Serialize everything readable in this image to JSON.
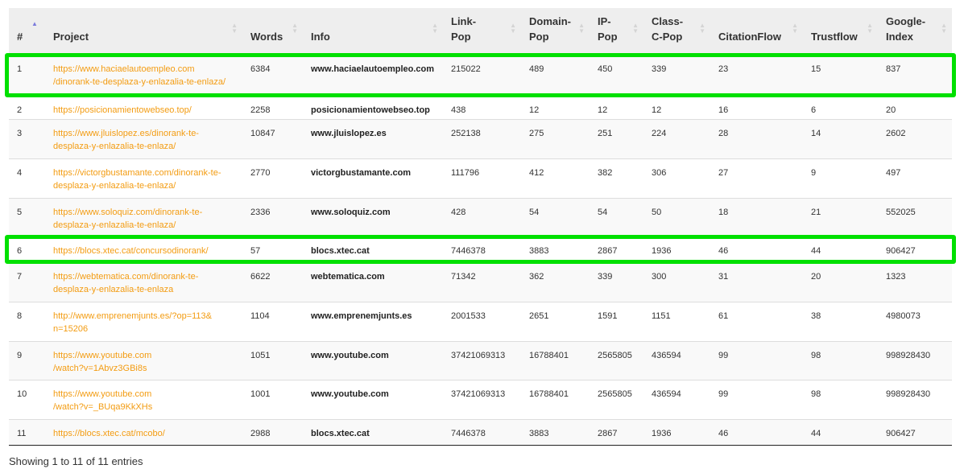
{
  "columns": [
    "#",
    "Project",
    "Words",
    "Info",
    "Link-\nPop",
    "Domain-\nPop",
    "IP-\nPop",
    "Class-\nC-Pop",
    "CitationFlow",
    "Trustflow",
    "Google-\nIndex"
  ],
  "sort": {
    "column": "#",
    "direction": "ascending"
  },
  "highlight_color": "#00e000",
  "link_color": "#f39c12",
  "rows": [
    {
      "num": "1",
      "project": "https://www.haciaelautoempleo.com\n/dinorank-te-desplaza-y-enlazalia-te-enlaza/",
      "words": "6384",
      "info": "www.haciaelautoempleo.com",
      "link_pop": "215022",
      "domain_pop": "489",
      "ip_pop": "450",
      "class_c_pop": "339",
      "citation_flow": "23",
      "trustflow": "15",
      "google_index": "837",
      "highlighted": true
    },
    {
      "num": "2",
      "project": "https://posicionamientowebseo.top/",
      "words": "2258",
      "info": "posicionamientowebseo.top",
      "link_pop": "438",
      "domain_pop": "12",
      "ip_pop": "12",
      "class_c_pop": "12",
      "citation_flow": "16",
      "trustflow": "6",
      "google_index": "20",
      "highlighted": false
    },
    {
      "num": "3",
      "project": "https://www.jluislopez.es/dinorank-te-\ndesplaza-y-enlazalia-te-enlaza/",
      "words": "10847",
      "info": "www.jluislopez.es",
      "link_pop": "252138",
      "domain_pop": "275",
      "ip_pop": "251",
      "class_c_pop": "224",
      "citation_flow": "28",
      "trustflow": "14",
      "google_index": "2602",
      "highlighted": false
    },
    {
      "num": "4",
      "project": "https://victorgbustamante.com/dinorank-te-\ndesplaza-y-enlazalia-te-enlaza/",
      "words": "2770",
      "info": "victorgbustamante.com",
      "link_pop": "111796",
      "domain_pop": "412",
      "ip_pop": "382",
      "class_c_pop": "306",
      "citation_flow": "27",
      "trustflow": "9",
      "google_index": "497",
      "highlighted": false
    },
    {
      "num": "5",
      "project": "https://www.soloquiz.com/dinorank-te-\ndesplaza-y-enlazalia-te-enlaza/",
      "words": "2336",
      "info": "www.soloquiz.com",
      "link_pop": "428",
      "domain_pop": "54",
      "ip_pop": "54",
      "class_c_pop": "50",
      "citation_flow": "18",
      "trustflow": "21",
      "google_index": "552025",
      "highlighted": false
    },
    {
      "num": "6",
      "project": "https://blocs.xtec.cat/concursodinorank/",
      "words": "57",
      "info": "blocs.xtec.cat",
      "link_pop": "7446378",
      "domain_pop": "3883",
      "ip_pop": "2867",
      "class_c_pop": "1936",
      "citation_flow": "46",
      "trustflow": "44",
      "google_index": "906427",
      "highlighted": true
    },
    {
      "num": "7",
      "project": "https://webtematica.com/dinorank-te-\ndesplaza-y-enlazalia-te-enlaza",
      "words": "6622",
      "info": "webtematica.com",
      "link_pop": "71342",
      "domain_pop": "362",
      "ip_pop": "339",
      "class_c_pop": "300",
      "citation_flow": "31",
      "trustflow": "20",
      "google_index": "1323",
      "highlighted": false
    },
    {
      "num": "8",
      "project": "http://www.emprenemjunts.es/?op=113&\nn=15206",
      "words": "1104",
      "info": "www.emprenemjunts.es",
      "link_pop": "2001533",
      "domain_pop": "2651",
      "ip_pop": "1591",
      "class_c_pop": "1151",
      "citation_flow": "61",
      "trustflow": "38",
      "google_index": "4980073",
      "highlighted": false
    },
    {
      "num": "9",
      "project": "https://www.youtube.com\n/watch?v=1Abvz3GBi8s",
      "words": "1051",
      "info": "www.youtube.com",
      "link_pop": "37421069313",
      "domain_pop": "16788401",
      "ip_pop": "2565805",
      "class_c_pop": "436594",
      "citation_flow": "99",
      "trustflow": "98",
      "google_index": "998928430",
      "highlighted": false
    },
    {
      "num": "10",
      "project": "https://www.youtube.com\n/watch?v=_BUqa9KkXHs",
      "words": "1001",
      "info": "www.youtube.com",
      "link_pop": "37421069313",
      "domain_pop": "16788401",
      "ip_pop": "2565805",
      "class_c_pop": "436594",
      "citation_flow": "99",
      "trustflow": "98",
      "google_index": "998928430",
      "highlighted": false
    },
    {
      "num": "11",
      "project": "https://blocs.xtec.cat/mcobo/",
      "words": "2988",
      "info": "blocs.xtec.cat",
      "link_pop": "7446378",
      "domain_pop": "3883",
      "ip_pop": "2867",
      "class_c_pop": "1936",
      "citation_flow": "46",
      "trustflow": "44",
      "google_index": "906427",
      "highlighted": false
    }
  ],
  "footer": {
    "info": "Showing 1 to 11 of 11 entries"
  }
}
